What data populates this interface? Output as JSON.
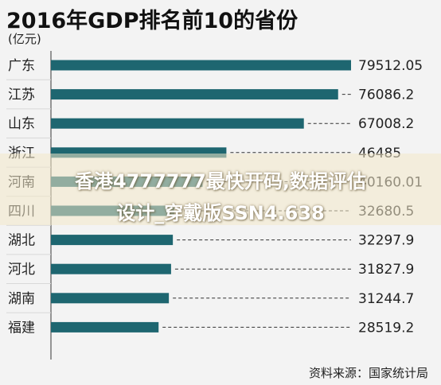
{
  "header": {
    "title": "2016年GDP排名前10的省份",
    "unit": "(亿元)"
  },
  "footer": {
    "source": "资料来源：国家统计局"
  },
  "watermark": {
    "line1": "香港4777777最快开码,数据评估",
    "line2": "设计_穿戴版SSN4.638"
  },
  "colors": {
    "bar": "#1e6670",
    "label_bg": "#ffffff"
  },
  "chart_data": {
    "type": "bar",
    "orientation": "horizontal",
    "title": "2016年GDP排名前10的省份",
    "unit": "(亿元)",
    "categories": [
      "广东",
      "江苏",
      "山东",
      "浙江",
      "河南",
      "四川",
      "湖北",
      "河北",
      "湖南",
      "福建"
    ],
    "values": [
      79512.05,
      76086.2,
      67008.2,
      46485,
      40160.01,
      32680.5,
      32297.9,
      31827.9,
      31244.7,
      28519.2
    ],
    "value_labels": [
      "79512.05",
      "76086.2",
      "67008.2",
      "46485",
      "40160.01",
      "32680.5",
      "32297.9",
      "31827.9",
      "31244.7",
      "28519.2"
    ],
    "xlim": [
      0,
      79512.05
    ],
    "leader_lines": "dashed",
    "grid": false,
    "legend": "none"
  }
}
